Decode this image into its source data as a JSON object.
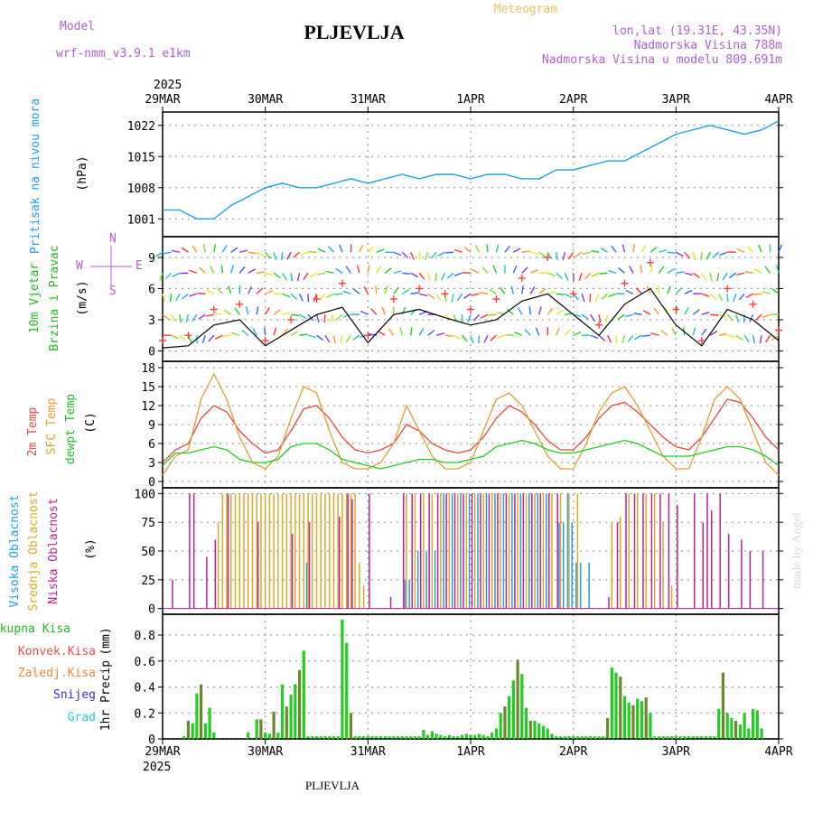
{
  "header": {
    "model_label": "Model",
    "model_name": "wrf-nmm_v3.9.1 e1km",
    "station": "PLJEVLJA",
    "app_title": "Meteogram",
    "lonlat": "lon,lat (19.31E, 43.35N)",
    "altitude": "Nadmorska Visina 788m",
    "model_altitude": "Nadmorska Visina u modelu 809.691m",
    "year_top": "2025",
    "year_bottom": "2025",
    "footer_station": "PLJEVLJA",
    "watermark": "made by Angel"
  },
  "colors": {
    "pressure": "#1ea0e6",
    "wind_speed": "#000000",
    "gust": "#ff3333",
    "temp2m": "#e8483c",
    "sfc": "#e0a030",
    "dewpt": "#22cc22",
    "high_cloud": "#1e9ee8",
    "mid_cloud": "#e0a828",
    "low_cloud": "#c02090",
    "total_precip": "#22cc22",
    "conv_precip": "#e85050",
    "frozen": "#e88a3c",
    "snow": "#3333dd",
    "hail": "#22cccc",
    "label_model": "#b060d0"
  },
  "chart_data": [
    {
      "type": "line",
      "name": "pressure",
      "ylabel_1": "Pritisak na nivou mora",
      "ylabel_2": "(hPa)",
      "x_ticks": [
        "29MAR",
        "30MAR",
        "31MAR",
        "1APR",
        "2APR",
        "3APR",
        "4APR"
      ],
      "x_start": "2025-03-29 00:00",
      "x_end": "2025-04-04 00:00",
      "ylim": [
        997,
        1025
      ],
      "yticks": [
        1001,
        1008,
        1015,
        1022
      ],
      "grid": true,
      "x": [
        0,
        4,
        8,
        12,
        16,
        20,
        24,
        28,
        32,
        36,
        40,
        44,
        48,
        52,
        56,
        60,
        64,
        68,
        72,
        76,
        80,
        84,
        88,
        92,
        96,
        100,
        104,
        108,
        112,
        116,
        120,
        124,
        128,
        132,
        136,
        140,
        144
      ],
      "values": [
        1003,
        1003,
        1001,
        1001,
        1004,
        1006,
        1008,
        1009,
        1008,
        1008,
        1009,
        1010,
        1009,
        1010,
        1011,
        1010,
        1011,
        1011,
        1010,
        1011,
        1011,
        1010,
        1010,
        1012,
        1012,
        1013,
        1014,
        1014,
        1016,
        1018,
        1020,
        1021,
        1022,
        1021,
        1020,
        1021,
        1023
      ]
    },
    {
      "type": "line",
      "name": "wind",
      "ylabel_1": "10m Vjetar",
      "ylabel_2": "Brzina i Pravac",
      "ylabel_3": "(m/s)",
      "compass": "N",
      "compass_w": "W",
      "compass_e": "E",
      "compass_s": "S",
      "ylim": [
        -1,
        11
      ],
      "yticks": [
        0,
        3,
        6,
        9
      ],
      "x": [
        0,
        6,
        12,
        18,
        24,
        30,
        36,
        42,
        48,
        54,
        60,
        66,
        72,
        78,
        84,
        90,
        96,
        102,
        108,
        114,
        120,
        126,
        132,
        138,
        144
      ],
      "speed": [
        0.3,
        0.5,
        2.5,
        3.0,
        0.5,
        2.0,
        3.5,
        4.2,
        0.8,
        3.5,
        4.0,
        3.2,
        2.5,
        3.0,
        4.8,
        5.5,
        3.5,
        1.5,
        4.5,
        6.0,
        2.5,
        0.5,
        4.0,
        3.0,
        1.0
      ],
      "gust": [
        1.0,
        1.5,
        4.0,
        4.5,
        1.0,
        3.0,
        5.0,
        6.5,
        1.5,
        5.0,
        6.0,
        5.5,
        4.0,
        5.0,
        7.0,
        9.0,
        5.5,
        2.5,
        6.5,
        8.5,
        4.0,
        1.0,
        6.0,
        4.5,
        2.0
      ]
    },
    {
      "type": "line",
      "name": "temperature",
      "ylabel_1": "2m Temp",
      "ylabel_2": "SFC Temp",
      "ylabel_3": "dewpt Temp",
      "ylabel_4": "(C)",
      "ylim": [
        -1,
        19
      ],
      "yticks": [
        0,
        3,
        6,
        9,
        12,
        15,
        18
      ],
      "x": [
        0,
        3,
        6,
        9,
        12,
        15,
        18,
        21,
        24,
        27,
        30,
        33,
        36,
        39,
        42,
        45,
        48,
        51,
        54,
        57,
        60,
        63,
        66,
        69,
        72,
        75,
        78,
        81,
        84,
        87,
        90,
        93,
        96,
        99,
        102,
        105,
        108,
        111,
        114,
        117,
        120,
        123,
        126,
        129,
        132,
        135,
        138,
        141,
        144
      ],
      "series": [
        {
          "name": "2m Temp",
          "values": [
            3,
            5,
            6,
            10,
            12,
            11,
            8,
            6,
            4.5,
            5,
            8,
            11.5,
            12,
            10,
            7,
            5,
            4.5,
            5,
            6,
            9,
            8,
            6,
            5,
            4.5,
            5,
            7,
            10,
            12,
            11,
            9,
            6.5,
            5,
            5,
            7,
            10,
            12,
            12.5,
            11,
            9,
            7,
            5.5,
            5,
            7,
            10,
            13,
            12.5,
            10,
            7,
            5
          ]
        },
        {
          "name": "SFC Temp",
          "values": [
            1,
            4,
            5,
            13,
            17,
            13,
            7,
            3,
            2,
            4,
            10,
            15,
            14,
            8,
            3,
            2,
            2,
            3,
            6,
            12,
            8,
            4,
            2,
            2,
            3,
            8,
            13,
            14,
            12,
            8,
            4,
            2,
            2,
            6,
            11,
            14,
            15,
            12,
            8,
            4,
            2,
            2,
            7,
            13,
            15,
            13,
            8,
            3,
            1
          ]
        },
        {
          "name": "dewpt Temp",
          "values": [
            2.5,
            4.5,
            4.5,
            5,
            5.5,
            5,
            3.5,
            3,
            3,
            3.5,
            5.5,
            6,
            6,
            5,
            3.5,
            3,
            2.5,
            2,
            2.5,
            3,
            3.5,
            3.5,
            3,
            3,
            3.5,
            4,
            5.5,
            6,
            6.5,
            6,
            5,
            4.5,
            4.5,
            5,
            5.5,
            6,
            6.5,
            6,
            5,
            4,
            4,
            4,
            4.5,
            5,
            5.5,
            5.5,
            5,
            4,
            2.5
          ]
        }
      ]
    },
    {
      "type": "bar",
      "name": "clouds",
      "ylabel_1": "Visoka Oblacnost",
      "ylabel_2": "Srednja Oblacnost",
      "ylabel_3": "Niska Oblacnost",
      "ylabel_4": "(%)",
      "ylim": [
        -5,
        105
      ],
      "yticks": [
        0,
        25,
        50,
        75,
        100
      ],
      "series": [
        {
          "name": "Visoka Oblacnost",
          "x": [
            34,
            57,
            58,
            60,
            62,
            64,
            66,
            68,
            70,
            72,
            74,
            76,
            78,
            80,
            82,
            84,
            86,
            88,
            90,
            93,
            94,
            95,
            96,
            97,
            98,
            100
          ],
          "values": [
            40,
            25,
            25,
            50,
            50,
            50,
            100,
            100,
            100,
            100,
            100,
            100,
            100,
            100,
            100,
            100,
            100,
            100,
            100,
            75,
            75,
            100,
            75,
            40,
            40,
            40
          ]
        },
        {
          "name": "Srednja Oblacnost",
          "x": [
            13,
            14,
            15,
            16,
            17,
            18,
            19,
            20,
            21,
            22,
            23,
            24,
            25,
            26,
            27,
            28,
            29,
            30,
            31,
            32,
            33,
            34,
            35,
            36,
            37,
            38,
            39,
            40,
            41,
            42,
            43,
            44,
            45,
            46,
            47,
            57,
            59,
            61,
            63,
            65,
            67,
            69,
            71,
            73,
            75,
            77,
            79,
            81,
            83,
            85,
            87,
            89,
            91,
            93,
            95,
            97,
            105,
            107,
            109,
            111,
            113,
            115,
            117,
            119
          ],
          "values": [
            75,
            100,
            100,
            100,
            100,
            100,
            100,
            100,
            100,
            100,
            100,
            100,
            100,
            100,
            100,
            100,
            100,
            100,
            100,
            100,
            100,
            100,
            100,
            100,
            100,
            100,
            100,
            100,
            100,
            100,
            100,
            100,
            100,
            40,
            20,
            100,
            100,
            100,
            100,
            100,
            100,
            100,
            100,
            100,
            100,
            100,
            100,
            100,
            100,
            100,
            100,
            100,
            100,
            100,
            100,
            100,
            75,
            80,
            100,
            100,
            100,
            100,
            75,
            20
          ]
        },
        {
          "name": "Niska Oblacnost",
          "x": [
            2,
            6,
            7,
            10,
            12,
            15,
            22,
            30,
            34,
            41,
            43,
            44,
            48,
            53,
            56,
            58,
            60,
            62,
            64,
            66,
            68,
            70,
            72,
            74,
            76,
            78,
            80,
            82,
            84,
            86,
            88,
            90,
            92,
            104,
            106,
            108,
            110,
            112,
            114,
            116,
            118,
            120,
            124,
            126,
            127,
            128,
            130,
            132,
            135,
            137,
            140
          ],
          "values": [
            25,
            100,
            100,
            45,
            60,
            100,
            75,
            65,
            75,
            80,
            100,
            95,
            100,
            10,
            100,
            100,
            100,
            100,
            100,
            100,
            100,
            100,
            100,
            100,
            100,
            100,
            100,
            100,
            100,
            100,
            100,
            100,
            100,
            10,
            75,
            100,
            100,
            100,
            100,
            100,
            100,
            90,
            100,
            75,
            100,
            85,
            100,
            65,
            60,
            50,
            50
          ]
        }
      ]
    },
    {
      "type": "bar",
      "name": "precip",
      "ylabel_1": "1hr Precip",
      "ylabel_2": "(mm)",
      "legend": [
        "Ukupna Kisa",
        "Konvek.Kisa",
        "Zaledj.Kisa",
        "Snijeg",
        "Grad"
      ],
      "ylim": [
        0,
        0.96
      ],
      "yticks": [
        0,
        0.2,
        0.4,
        0.6,
        0.8
      ],
      "x_ticks": [
        "29MAR",
        "30MAR",
        "31MAR",
        "1APR",
        "2APR",
        "3APR",
        "4APR"
      ],
      "series": [
        {
          "name": "Ukupna Kisa",
          "x": [
            5,
            6,
            7,
            8,
            9,
            10,
            11,
            12,
            20,
            22,
            23,
            24,
            25,
            26,
            27,
            28,
            29,
            30,
            31,
            32,
            33,
            34,
            35,
            36,
            37,
            38,
            39,
            40,
            41,
            42,
            43,
            44,
            45,
            46,
            47,
            48,
            49,
            50,
            51,
            52,
            53,
            54,
            55,
            56,
            57,
            58,
            59,
            60,
            61,
            62,
            63,
            64,
            65,
            66,
            67,
            68,
            69,
            70,
            71,
            72,
            73,
            74,
            75,
            76,
            77,
            78,
            79,
            80,
            81,
            82,
            83,
            84,
            85,
            86,
            87,
            88,
            89,
            90,
            91,
            92,
            93,
            94,
            95,
            96,
            97,
            98,
            99,
            100,
            101,
            102,
            103,
            104,
            105,
            106,
            107,
            108,
            109,
            110,
            111,
            112,
            113,
            114,
            115,
            116,
            117,
            118,
            119,
            120,
            121,
            122,
            123,
            124,
            125,
            126,
            127,
            128,
            129,
            130,
            131,
            132,
            133,
            134,
            135,
            136,
            137,
            138,
            139,
            140
          ],
          "values": [
            0.02,
            0.14,
            0.12,
            0.35,
            0.42,
            0.12,
            0.24,
            0.05,
            0.05,
            0.15,
            0.15,
            0.05,
            0.04,
            0.21,
            0.05,
            0.42,
            0.25,
            0.34,
            0.42,
            0.53,
            0.68,
            0.02,
            0.02,
            0.02,
            0.02,
            0.02,
            0.02,
            0.02,
            0.02,
            0.92,
            0.74,
            0.2,
            0.02,
            0.02,
            0.02,
            0.02,
            0.02,
            0.02,
            0.02,
            0.02,
            0.02,
            0.02,
            0.02,
            0.02,
            0.02,
            0.02,
            0.02,
            0.02,
            0.07,
            0.03,
            0.06,
            0.04,
            0.03,
            0.02,
            0.03,
            0.02,
            0.02,
            0.03,
            0.04,
            0.03,
            0.03,
            0.04,
            0.03,
            0.02,
            0.05,
            0.08,
            0.2,
            0.25,
            0.33,
            0.45,
            0.61,
            0.5,
            0.24,
            0.14,
            0.14,
            0.12,
            0.1,
            0.08,
            0.04,
            0.02,
            0.02,
            0.02,
            0.02,
            0.02,
            0.02,
            0.02,
            0.02,
            0.02,
            0.02,
            0.02,
            0.02,
            0.16,
            0.55,
            0.51,
            0.48,
            0.33,
            0.28,
            0.26,
            0.31,
            0.29,
            0.32,
            0.2,
            0.02,
            0.02,
            0.02,
            0.02,
            0.02,
            0.02,
            0.02,
            0.02,
            0.02,
            0.02,
            0.02,
            0.02,
            0.02,
            0.02,
            0.02,
            0.23,
            0.51,
            0.2,
            0.16,
            0.14,
            0.11,
            0.2,
            0.08,
            0.23,
            0.22,
            0.08
          ]
        }
      ]
    }
  ]
}
